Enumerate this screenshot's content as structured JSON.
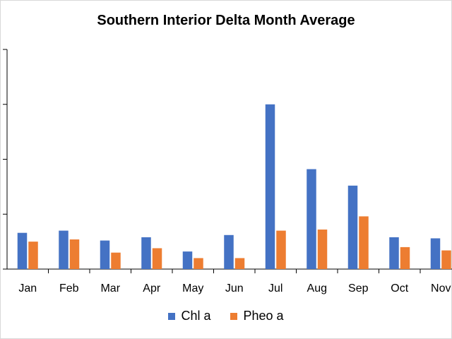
{
  "colors": {
    "chl": "#4472C4",
    "pheo": "#ED7D31"
  },
  "chart_data": {
    "type": "bar",
    "title": "Southern Interior Delta Month Average",
    "xlabel": "",
    "ylabel": "",
    "categories": [
      "Jan",
      "Feb",
      "Mar",
      "Apr",
      "May",
      "Jun",
      "Jul",
      "Aug",
      "Sep",
      "Oct",
      "Nov"
    ],
    "series": [
      {
        "name": "Chl a",
        "values": [
          3.3,
          3.5,
          2.6,
          2.9,
          1.6,
          3.1,
          15.0,
          9.1,
          7.6,
          2.9,
          2.8
        ]
      },
      {
        "name": "Pheo a",
        "values": [
          2.5,
          2.7,
          1.5,
          1.9,
          1.0,
          1.0,
          3.5,
          3.6,
          4.8,
          2.0,
          1.7
        ]
      }
    ],
    "ylim": [
      0,
      20
    ],
    "y_tick_labels_visible": false,
    "legend_position": "bottom"
  }
}
